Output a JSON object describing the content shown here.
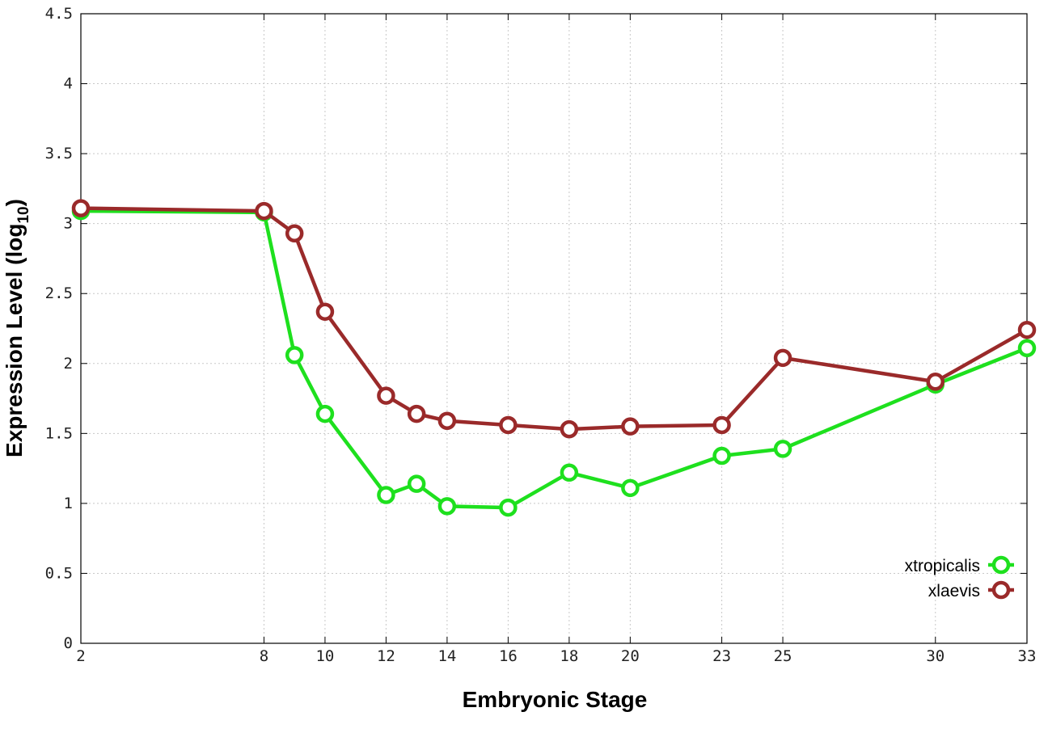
{
  "chart_data": {
    "type": "line",
    "xlabel": "Embryonic Stage",
    "ylabel_main": "Expression Level (log",
    "ylabel_sub": "10",
    "ylabel_close": ")",
    "xlim": [
      2,
      33
    ],
    "ylim": [
      0,
      4.5
    ],
    "x_ticks": [
      2,
      8,
      10,
      12,
      14,
      16,
      18,
      20,
      23,
      25,
      30,
      33
    ],
    "x_tick_labels": [
      "2",
      "8",
      "10",
      "12",
      "14",
      "16",
      "18",
      "20",
      "23",
      "25",
      "30",
      "33"
    ],
    "y_ticks": [
      0,
      0.5,
      1,
      1.5,
      2,
      2.5,
      3,
      3.5,
      4,
      4.5
    ],
    "y_tick_labels": [
      "0",
      "0.5",
      "1",
      "1.5",
      "2",
      "2.5",
      "3",
      "3.5",
      "4",
      "4.5"
    ],
    "grid": true,
    "legend_position": "bottom-right",
    "series": [
      {
        "name": "xtropicalis",
        "color": "#1ee01e",
        "x": [
          2,
          8,
          9,
          10,
          12,
          13,
          14,
          16,
          18,
          20,
          23,
          25,
          30,
          33
        ],
        "y": [
          3.09,
          3.08,
          2.06,
          1.64,
          1.06,
          1.14,
          0.98,
          0.97,
          1.22,
          1.11,
          1.34,
          1.39,
          1.85,
          2.11
        ]
      },
      {
        "name": "xlaevis",
        "color": "#9a2a2a",
        "x": [
          2,
          8,
          9,
          10,
          12,
          13,
          14,
          16,
          18,
          20,
          23,
          25,
          30,
          33
        ],
        "y": [
          3.11,
          3.09,
          2.93,
          2.37,
          1.77,
          1.64,
          1.59,
          1.56,
          1.53,
          1.55,
          1.56,
          2.04,
          1.87,
          2.24
        ]
      }
    ]
  }
}
